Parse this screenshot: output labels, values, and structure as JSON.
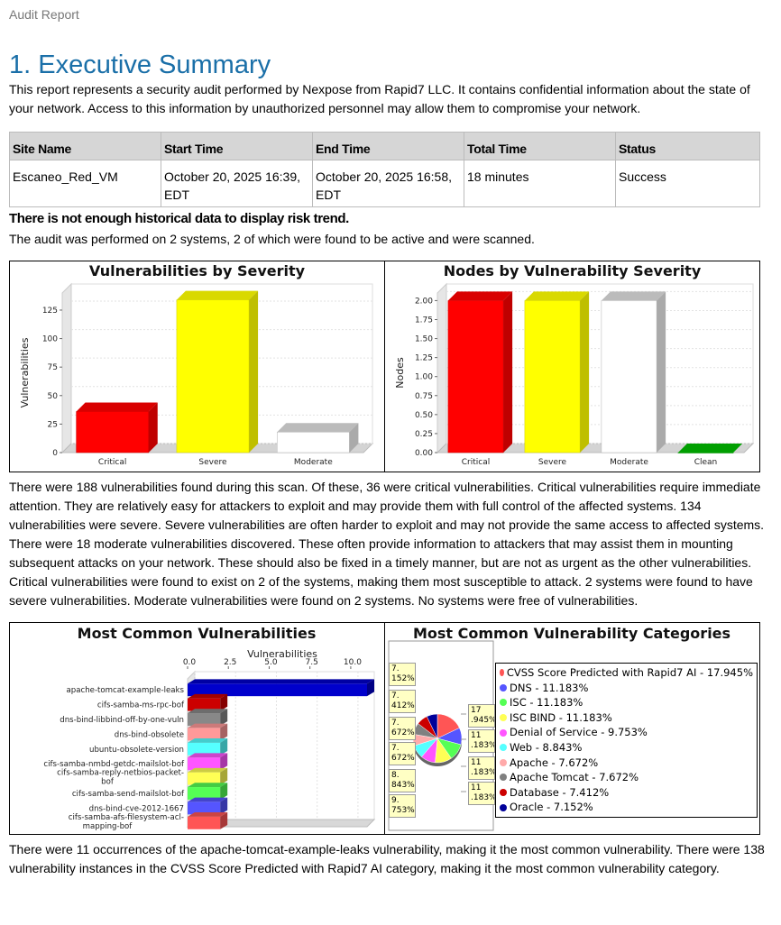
{
  "header": {
    "label": "Audit Report"
  },
  "section": {
    "title": "1. Executive Summary"
  },
  "intro": "This report represents a security audit performed by Nexpose from Rapid7 LLC. It contains confidential information about the state of your network. Access to this information by unauthorized personnel may allow them to compromise your network.",
  "site_table": {
    "headers": [
      "Site Name",
      "Start Time",
      "End Time",
      "Total Time",
      "Status"
    ],
    "row": [
      "Escaneo_Red_VM",
      "October 20, 2025 16:39, EDT",
      "October 20, 2025 16:58, EDT",
      "18 minutes",
      "Success"
    ]
  },
  "risk_trend_notice": "There is not enough historical data to display risk trend.",
  "audit_summary": "The audit was performed on 2 systems, 2 of which were found to be active and were scanned.",
  "severity_text": "There were 188 vulnerabilities found during this scan. Of these, 36 were critical vulnerabilities. Critical vulnerabilities require immediate attention. They are relatively easy for attackers to exploit and may provide them with full control of the affected systems. 134 vulnerabilities were severe. Severe vulnerabilities are often harder to exploit and may not provide the same access to affected systems. There were 18 moderate vulnerabilities discovered. These often provide information to attackers that may assist them in mounting subsequent attacks on your network. These should also be fixed in a timely manner, but are not as urgent as the other vulnerabilities. Critical vulnerabilities were found to exist on 2 of the systems, making them most susceptible to attack. 2 systems were found to have severe vulnerabilities. Moderate vulnerabilities were found on 2 systems. No systems were free of vulnerabilities.",
  "common_text": "There were 11 occurrences of the apache-tomcat-example-leaks vulnerability, making it the most common vulnerability. There were 138 vulnerability instances in the CVSS Score Predicted with Rapid7 AI category, making it the most common vulnerability category.",
  "colors": {
    "critical": "#ff0000",
    "severe": "#ffff00",
    "moderate": "#ffffff",
    "clean": "#00bb00",
    "heading": "#1a6fa8"
  },
  "chart_data": [
    {
      "type": "bar",
      "title": "Vulnerabilities by Severity",
      "ylabel": "Vulnerabilities",
      "categories": [
        "Critical",
        "Severe",
        "Moderate"
      ],
      "values": [
        36,
        134,
        18
      ],
      "colors": [
        "#ff0000",
        "#ffff00",
        "#ffffff"
      ],
      "yticks": [
        "0",
        "25",
        "50",
        "75",
        "100",
        "125"
      ],
      "ylim": [
        0,
        140
      ]
    },
    {
      "type": "bar",
      "title": "Nodes by Vulnerability Severity",
      "ylabel": "Nodes",
      "categories": [
        "Critical",
        "Severe",
        "Moderate",
        "Clean"
      ],
      "values": [
        2,
        2,
        2,
        0
      ],
      "colors": [
        "#ff0000",
        "#ffff00",
        "#ffffff",
        "#00bb00"
      ],
      "yticks": [
        "0.00",
        "0.25",
        "0.50",
        "0.75",
        "1.00",
        "1.25",
        "1.50",
        "1.75",
        "2.00"
      ],
      "ylim": [
        0,
        2.1
      ]
    },
    {
      "type": "bar",
      "orientation": "horizontal",
      "title": "Most Common Vulnerabilities",
      "xlabel": "Vulnerabilities",
      "xticks": [
        "0.0",
        "2.5",
        "5.0",
        "7.5",
        "10.0"
      ],
      "xlim": [
        0,
        11
      ],
      "categories": [
        "apache-tomcat-example-leaks",
        "cifs-samba-ms-rpc-bof",
        "dns-bind-libbind-off-by-one-vuln",
        "dns-bind-obsolete",
        "ubuntu-obsolete-version",
        "cifs-samba-nmbd-getdc-mailslot-bof",
        "cifs-samba-reply-netbios-packet-bof",
        "cifs-samba-send-mailslot-bof",
        "dns-bind-cve-2012-1667",
        "cifs-samba-afs-filesystem-acl-mapping-bof"
      ],
      "values": [
        11,
        2,
        2,
        2,
        2,
        2,
        2,
        2,
        2,
        2
      ],
      "colors": [
        "#0000cc",
        "#cc0000",
        "#888888",
        "#ff9999",
        "#55ffff",
        "#ff55ff",
        "#ffff55",
        "#55ff55",
        "#5555ff",
        "#ff5555"
      ]
    },
    {
      "type": "pie",
      "title": "Most Common Vulnerability Categories",
      "labels": [
        "CVSS Score Predicted with Rapid7 AI",
        "DNS",
        "ISC",
        "ISC BIND",
        "Denial of Service",
        "Web",
        "Apache",
        "Apache Tomcat",
        "Database",
        "Oracle"
      ],
      "values": [
        17.945,
        11.183,
        11.183,
        11.183,
        9.753,
        8.843,
        7.672,
        7.672,
        7.412,
        7.152
      ],
      "legend": [
        "CVSS Score Predicted with Rapid7 AI - 17.945%",
        "DNS - 11.183%",
        "ISC - 11.183%",
        "ISC BIND - 11.183%",
        "Denial of Service - 9.753%",
        "Web - 8.843%",
        "Apache - 7.672%",
        "Apache Tomcat - 7.672%",
        "Database - 7.412%",
        "Oracle - 7.152%"
      ],
      "colors": [
        "#ff5555",
        "#5555ff",
        "#55ff55",
        "#ffff55",
        "#ff55ff",
        "#55ffff",
        "#ffaaaa",
        "#808080",
        "#cc0000",
        "#000099"
      ],
      "slice_labels_left": [
        "7.\n152%",
        "7.\n412%",
        "7.\n672%",
        "7.\n672%",
        "8.\n843%",
        "9.\n753%"
      ],
      "slice_labels_right": [
        "17\n.945%",
        "11\n.183%",
        "11\n.183%",
        "11\n.183%"
      ]
    }
  ]
}
